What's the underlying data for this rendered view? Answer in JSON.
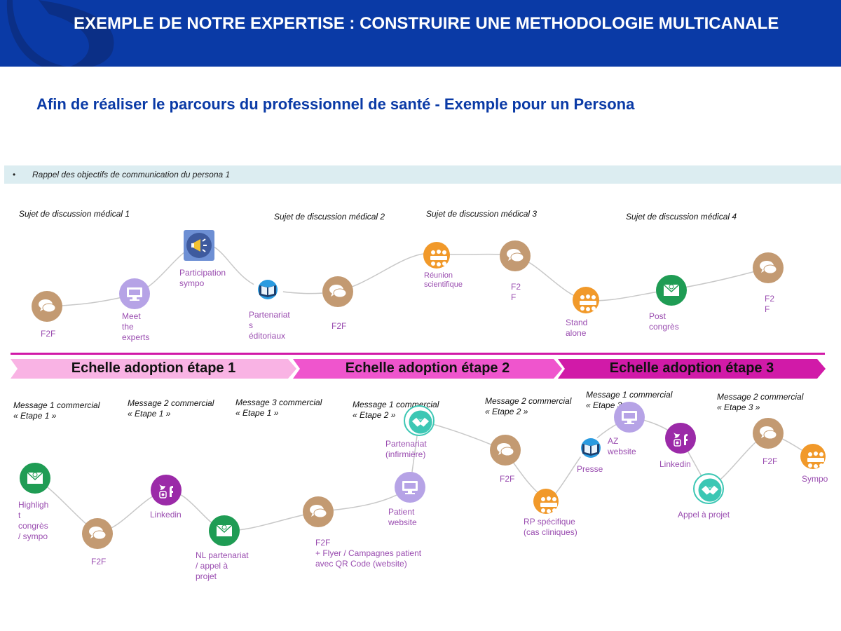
{
  "header": {
    "title": "EXEMPLE DE NOTRE EXPERTISE : CONSTRUIRE UNE METHODOLOGIE MULTICANALE"
  },
  "subtitle": "Afin de réaliser le parcours du professionnel de santé - Exemple pour un Persona",
  "banner": {
    "bullet": "•",
    "text": "Rappel des objectifs de communication du persona 1"
  },
  "colors": {
    "header_blue": "#0a3aa6",
    "f2f_brown": "#c39a72",
    "screen_lavender": "#b6a3e6",
    "email_green": "#1f9c54",
    "social_purple": "#9b2aa8",
    "meeting_orange": "#f1992a",
    "handshake_teal": "#3cc7b4",
    "stage1": "#f9b3e4",
    "stage2": "#ef55cd",
    "stage3": "#d11aa8"
  },
  "top_topics": [
    "Sujet de discussion médical 1",
    "Sujet de discussion médical 2",
    "Sujet de discussion médical 3",
    "Sujet de discussion médical 4"
  ],
  "top_nodes": [
    {
      "icon": "chat-icon",
      "label": "F2F"
    },
    {
      "icon": "monitor-icon",
      "label": "Meet\nthe\nexperts"
    },
    {
      "icon": "megaphone-icon",
      "label": "Participation\nsympo"
    },
    {
      "icon": "book-icon",
      "label": "Partenariat\ns\néditoriaux"
    },
    {
      "icon": "chat-icon",
      "label": "F2F"
    },
    {
      "icon": "meeting-icon",
      "label": "Réunion\nscientifique"
    },
    {
      "icon": "chat-icon",
      "label": "F2\nF"
    },
    {
      "icon": "meeting-icon",
      "label": "Stand\nalone"
    },
    {
      "icon": "email-icon",
      "label": "Post\ncongrès"
    },
    {
      "icon": "chat-icon",
      "label": "F2\nF"
    }
  ],
  "stages": [
    "Echelle adoption étape 1",
    "Echelle adoption étape 2",
    "Echelle adoption étape 3"
  ],
  "bottom_messages": [
    "Message 1 commercial\n« Etape 1 »",
    "Message 2 commercial\n« Etape 1 »",
    "Message 3 commercial\n« Etape 1 »",
    "Message 1 commercial\n« Etape 2 »",
    "Message 2 commercial\n« Etape 2 »",
    "Message 1 commercial\n« Etape 3 »",
    "Message 2 commercial\n« Etape 3 »"
  ],
  "bottom_nodes": [
    {
      "icon": "email-icon",
      "label": "Highligh\nt\ncongrès\n/ sympo"
    },
    {
      "icon": "chat-icon",
      "label": "F2F"
    },
    {
      "icon": "social-icon",
      "label": "Linkedin"
    },
    {
      "icon": "email-icon",
      "label": "NL partenariat\n/ appel à\nprojet"
    },
    {
      "icon": "chat-icon",
      "label": "F2F\n+ Flyer / Campagnes patient\navec QR Code (website)"
    },
    {
      "icon": "handshake-icon",
      "label": "Partenariat\n(infirmière)"
    },
    {
      "icon": "monitor-icon",
      "label": "Patient\nwebsite"
    },
    {
      "icon": "chat-icon",
      "label": "F2F"
    },
    {
      "icon": "meeting-icon",
      "label": "RP spécifique\n(cas cliniques)"
    },
    {
      "icon": "book-icon",
      "label": "Presse"
    },
    {
      "icon": "monitor-icon",
      "label": "AZ\nwebsite"
    },
    {
      "icon": "social-icon",
      "label": "Linkedin"
    },
    {
      "icon": "handshake-icon",
      "label": "Appel à projet"
    },
    {
      "icon": "chat-icon",
      "label": "F2F"
    },
    {
      "icon": "meeting-icon",
      "label": "Sympo"
    }
  ]
}
